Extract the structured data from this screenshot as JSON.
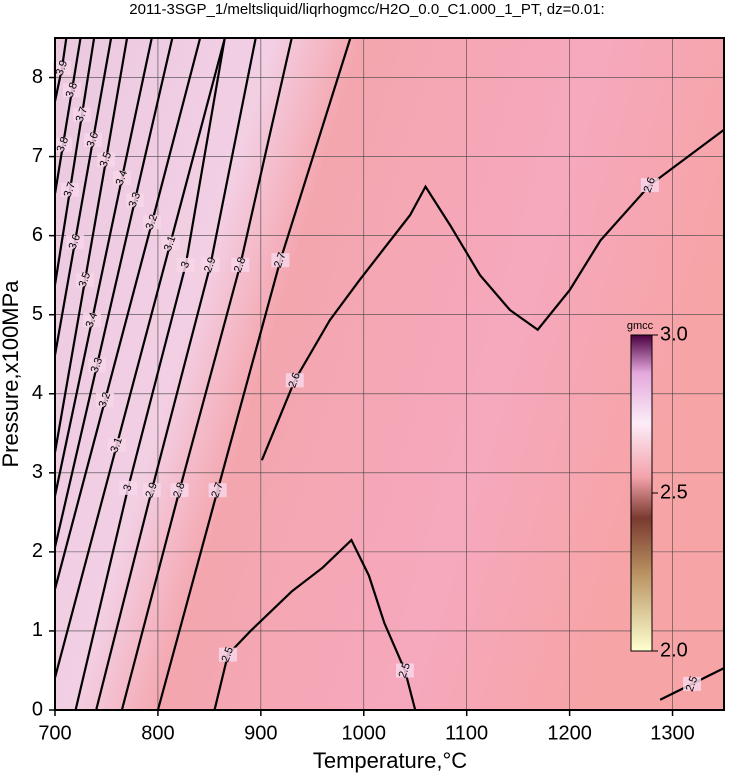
{
  "chart_data": {
    "type": "contour",
    "title": "2011-3SGP_1/meltsliquid/liqrhogmcc/H2O_0.0_C1.000_1_PT, dz=0.01:",
    "x_label": "Temperature,°C",
    "y_label": "Pressure,x100MPa",
    "xlim": [
      700,
      1350
    ],
    "ylim": [
      0,
      8.5
    ],
    "xticks": [
      700,
      800,
      900,
      1000,
      1100,
      1200,
      1300
    ],
    "yticks": [
      0,
      1,
      2,
      3,
      4,
      5,
      6,
      7,
      8
    ],
    "grid": true,
    "colorbar": {
      "label": "gmcc",
      "clim": [
        2.0,
        3.0
      ],
      "ticks": [
        {
          "value": 2.0,
          "label": "2.0"
        },
        2.5,
        {
          "value": 3.0,
          "label": "3.0"
        }
      ]
    },
    "contours": [
      {
        "level": 2.5,
        "x": [
          855,
          868,
          890,
          930,
          960,
          988,
          1005,
          1020,
          1040,
          1050
        ],
        "y": [
          0,
          0.7,
          1.0,
          1.5,
          1.8,
          2.15,
          1.7,
          1.1,
          0.5,
          0
        ]
      },
      {
        "level": 2.5,
        "x": [
          1288,
          1350
        ],
        "y": [
          0.13,
          0.53
        ]
      },
      {
        "level": 2.6,
        "x": [
          901,
          933,
          967,
          996,
          1045,
          1060,
          1084,
          1113,
          1142,
          1169,
          1200,
          1230,
          1278,
          1350
        ],
        "y": [
          3.16,
          4.17,
          4.93,
          5.44,
          6.26,
          6.62,
          6.13,
          5.5,
          5.06,
          4.81,
          5.31,
          5.94,
          6.64,
          7.34
        ]
      },
      {
        "level": 2.7,
        "x": [
          800,
          858,
          919,
          987
        ],
        "y": [
          0,
          2.78,
          5.69,
          8.5
        ]
      },
      {
        "level": 2.8,
        "x": [
          765,
          821,
          880,
          930
        ],
        "y": [
          0,
          2.78,
          5.63,
          8.5
        ]
      },
      {
        "level": 2.9,
        "x": [
          740,
          794,
          851,
          895
        ],
        "y": [
          0,
          2.78,
          5.63,
          8.5
        ]
      },
      {
        "level": 3,
        "x": [
          720,
          771,
          827,
          865
        ],
        "y": [
          0,
          2.81,
          5.63,
          8.5
        ]
      },
      {
        "level": 3.1,
        "x": [
          700,
          760,
          812,
          865
        ],
        "y": [
          0.41,
          3.35,
          5.9,
          8.5
        ]
      },
      {
        "level": 3.2,
        "x": [
          700,
          748.6,
          794.3,
          841
        ],
        "y": [
          1.53,
          3.92,
          6.17,
          8.5
        ]
      },
      {
        "level": 3.3,
        "x": [
          700,
          740.8,
          777.7,
          814
        ],
        "y": [
          2.06,
          4.36,
          6.45,
          8.5
        ]
      },
      {
        "level": 3.4,
        "x": [
          700,
          736,
          765.1,
          794
        ],
        "y": [
          2.71,
          4.93,
          6.73,
          8.5
        ]
      },
      {
        "level": 3.5,
        "x": [
          700,
          729.2,
          749.6,
          770
        ],
        "y": [
          3.26,
          5.44,
          6.96,
          8.5
        ]
      },
      {
        "level": 3.6,
        "x": [
          700,
          719.4,
          736.9,
          754.5
        ],
        "y": [
          4.49,
          5.92,
          7.21,
          8.5
        ]
      },
      {
        "level": 3.7,
        "x": [
          700,
          714.6,
          726.2,
          738
        ],
        "y": [
          5.38,
          6.58,
          7.53,
          8.5
        ]
      },
      {
        "level": 3.8,
        "x": [
          700,
          707.8,
          716.5,
          724.8
        ],
        "y": [
          6.53,
          7.15,
          7.84,
          8.5
        ]
      },
      {
        "level": 3.9,
        "x": [
          700,
          706.8,
          711
        ],
        "y": [
          7.7,
          8.12,
          8.5
        ]
      }
    ]
  }
}
